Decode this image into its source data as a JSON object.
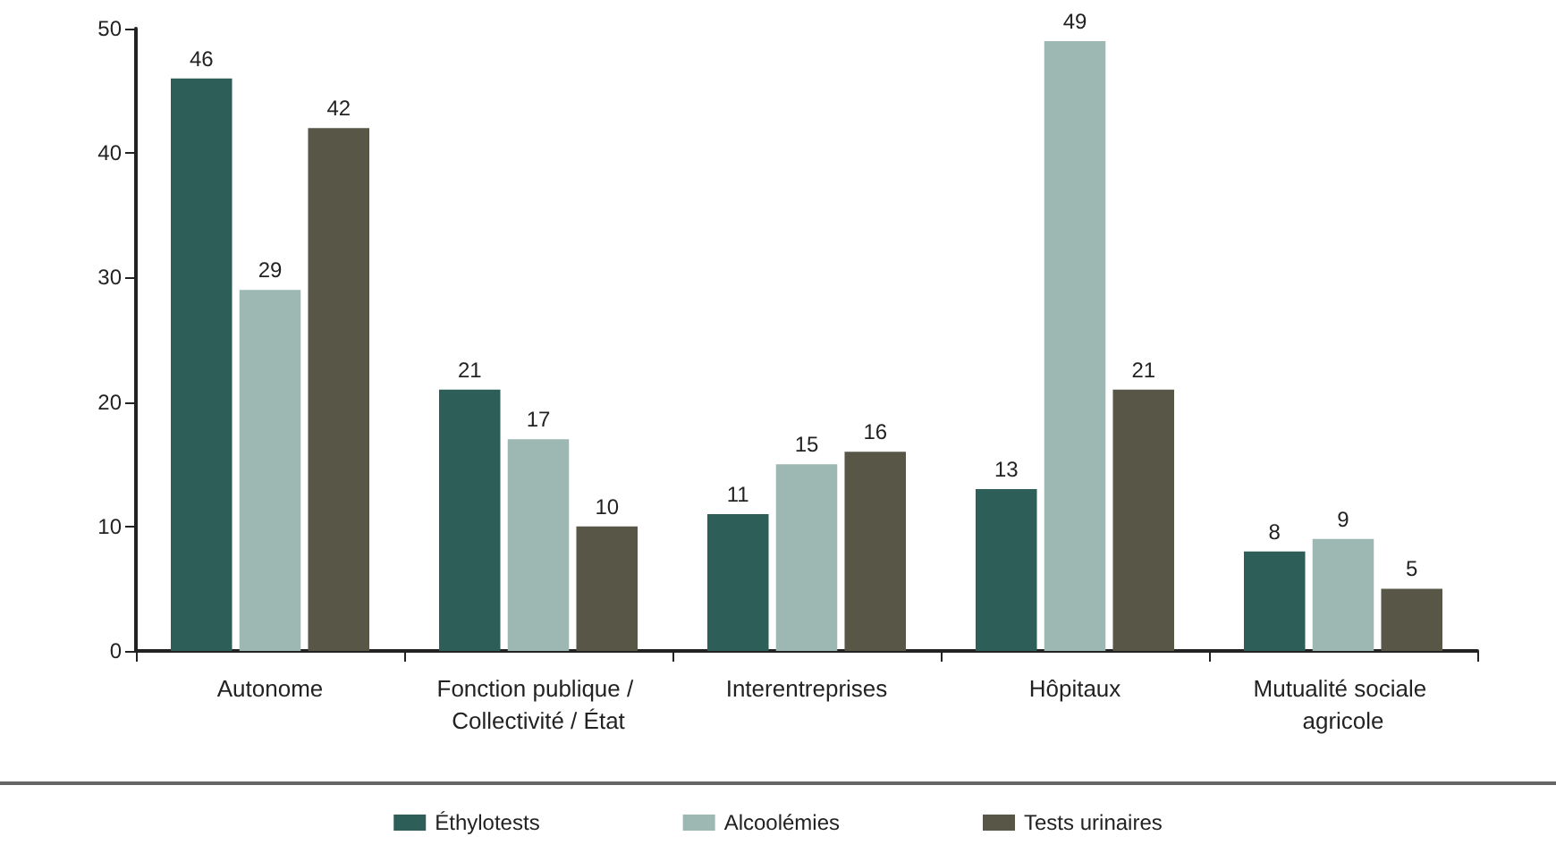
{
  "chart_data": {
    "type": "bar",
    "categories": [
      "Autonome",
      "Fonction publique / Collectivité / État",
      "Interentreprises",
      "Hôpitaux",
      "Mutualité sociale agricole"
    ],
    "series": [
      {
        "name": "Éthylotests",
        "color": "#2d5f58",
        "values": [
          46,
          21,
          11,
          13,
          8
        ]
      },
      {
        "name": "Alcoolémies",
        "color": "#9db8b3",
        "values": [
          29,
          17,
          15,
          49,
          9
        ]
      },
      {
        "name": "Tests urinaires",
        "color": "#575647",
        "values": [
          42,
          10,
          16,
          21,
          5
        ]
      }
    ],
    "ylim": [
      0,
      50
    ],
    "yticks": [
      0,
      10,
      20,
      30,
      40,
      50
    ],
    "grid": false,
    "legend": "bottom",
    "data_labels": true
  }
}
